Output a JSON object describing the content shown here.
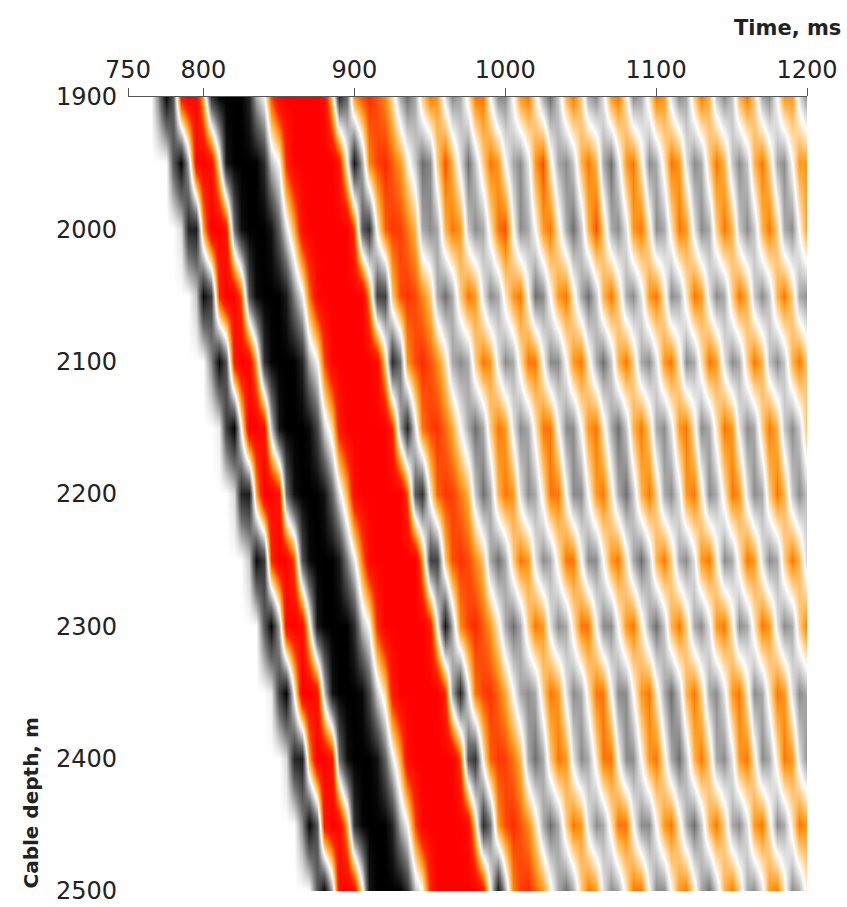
{
  "chart_data": {
    "type": "heatmap",
    "x_label": "Time, ms",
    "y_label": "Cable depth, m",
    "xlim": [
      750,
      1200
    ],
    "xticks": [
      750,
      800,
      900,
      1000,
      1100,
      1200
    ],
    "ylim": [
      1900,
      2500
    ],
    "yticks": [
      1900,
      2000,
      2100,
      2200,
      2300,
      2400,
      2500
    ],
    "x": [
      750,
      755,
      760,
      765,
      770,
      775,
      780,
      785,
      790,
      795,
      800,
      805,
      810,
      815,
      820,
      825,
      830,
      835,
      840,
      845,
      850,
      855,
      860,
      865,
      870,
      875,
      880,
      885,
      890,
      895,
      900,
      905,
      910,
      915,
      920,
      925,
      930,
      935,
      940,
      945,
      950,
      955,
      960,
      965,
      970,
      975,
      980,
      985,
      990,
      995,
      1000,
      1005,
      1010,
      1015,
      1020,
      1025,
      1030,
      1035,
      1040,
      1045,
      1050,
      1055,
      1060,
      1065,
      1070,
      1075,
      1080,
      1085,
      1090,
      1095,
      1100,
      1105,
      1110,
      1115,
      1120,
      1125,
      1130,
      1135,
      1140,
      1145,
      1150,
      1155,
      1160,
      1165,
      1170,
      1175,
      1180,
      1185,
      1190,
      1195,
      1200
    ],
    "y": [
      1900,
      1950,
      2000,
      2050,
      2100,
      2150,
      2200,
      2250,
      2300,
      2350,
      2400,
      2450,
      2500
    ],
    "z": [
      [
        0,
        0,
        0,
        0,
        0.4,
        0.97,
        0.6,
        -0.8,
        -1,
        -0.92,
        -0.33,
        0.77,
        0.98,
        1,
        1,
        1,
        0.84,
        0.3,
        0.03,
        -0.6,
        -0.97,
        -1,
        -1,
        -1,
        -1,
        -1,
        -0.9,
        -0.2,
        0.8,
        0.5,
        -0.4,
        -0.61,
        -0.69,
        -0.59,
        -0.44,
        -0.15,
        0.3,
        0.5,
        0.3,
        -0.2,
        -0.5,
        -0.4,
        0.1,
        0.4,
        0.3,
        -0.1,
        -0.5,
        -0.5,
        0,
        0.4,
        0.4,
        0,
        -0.4,
        -0.5,
        -0.1,
        0.3,
        0.5,
        0.2,
        -0.3,
        -0.5,
        -0.2,
        0.3,
        0.4,
        0.1,
        -0.4,
        -0.5,
        -0.1,
        0.4,
        0.3,
        -0.1,
        -0.5,
        -0.4,
        0.1,
        0.4,
        0.3,
        -0.2,
        -0.5,
        -0.3,
        0.2,
        0.4,
        0.2,
        -0.3,
        -0.5,
        -0.2,
        0.3,
        0.4,
        0,
        -0.4,
        -0.4,
        0.1,
        0.4
      ],
      [
        0,
        0,
        0,
        0,
        0,
        0,
        0.6,
        0.98,
        0.3,
        -0.9,
        -1,
        -0.88,
        -0.1,
        0.9,
        1,
        1,
        1,
        1,
        0.8,
        0.23,
        0,
        -0.7,
        -1,
        -1,
        -1,
        -1,
        -1,
        -1,
        -0.8,
        0,
        0.9,
        0.3,
        -0.45,
        -0.63,
        -0.7,
        -0.56,
        -0.4,
        -0.08,
        0.2,
        0.5,
        0.4,
        -0.2,
        -0.6,
        -0.3,
        0.1,
        0.5,
        0.2,
        -0.2,
        -0.5,
        -0.4,
        0,
        0.3,
        0.4,
        0.1,
        -0.4,
        -0.6,
        -0.1,
        0.3,
        0.4,
        0.2,
        -0.3,
        -0.5,
        -0.3,
        0.3,
        0.5,
        0.1,
        -0.4,
        -0.5,
        -0.1,
        0.4,
        0.3,
        -0.1,
        -0.5,
        -0.4,
        0.1,
        0.4,
        0.3,
        -0.2,
        -0.5,
        -0.3,
        0.2,
        0.4,
        0.2,
        -0.3,
        -0.5,
        -0.2,
        0.3,
        0.4,
        0,
        -0.4,
        -0.4
      ],
      [
        0,
        0,
        0,
        0,
        0,
        0,
        0,
        0.13,
        0.83,
        0.87,
        -0.35,
        -1,
        -1,
        -0.8,
        0.5,
        0.94,
        1,
        1,
        1,
        0.92,
        0.55,
        0.1,
        -0.33,
        -0.9,
        -1,
        -1,
        -1,
        -1,
        -1,
        -1,
        -0.6,
        0.6,
        0.77,
        -0.07,
        -0.55,
        -0.66,
        -0.64,
        -0.5,
        -0.3,
        0.3,
        0.4,
        0.3,
        -0.3,
        -0.5,
        -0.4,
        0.2,
        0.4,
        0.3,
        -0.1,
        -0.5,
        -0.6,
        0,
        0.4,
        0.3,
        0,
        -0.4,
        -0.5,
        -0.1,
        0.3,
        0.5,
        0.2,
        -0.3,
        -0.6,
        -0.2,
        0.3,
        0.4,
        0.1,
        -0.4,
        -0.5,
        -0.1,
        0.4,
        0.3,
        -0.1,
        -0.5,
        -0.4,
        0.1,
        0.4,
        0.3,
        -0.2,
        -0.5,
        -0.3,
        0.2,
        0.4,
        0.2,
        -0.3,
        -0.5,
        -0.2,
        0.3,
        0.4,
        0,
        -0.4
      ],
      [
        0,
        0,
        0,
        0,
        0,
        0,
        0,
        0,
        0,
        0.2,
        0.95,
        0.73,
        -0.7,
        -1,
        -0.96,
        -0.57,
        0.63,
        0.96,
        1,
        1,
        1,
        0.88,
        0.43,
        0.07,
        -0.5,
        -0.93,
        -1,
        -1,
        -1,
        -1,
        -1,
        -1,
        -0.4,
        0.7,
        0.7,
        -0.23,
        -0.6,
        -0.67,
        -0.61,
        -0.46,
        -0.23,
        0.3,
        0.5,
        0.3,
        -0.2,
        -0.5,
        -0.4,
        0.1,
        0.4,
        0.3,
        -0.1,
        -0.4,
        -0.5,
        0,
        0.5,
        0.4,
        0,
        -0.4,
        -0.5,
        -0.1,
        0.3,
        0.5,
        0.2,
        -0.3,
        -0.5,
        -0.2,
        0.3,
        0.4,
        0.1,
        -0.4,
        -0.5,
        -0.1,
        0.4,
        0.3,
        -0.1,
        -0.5,
        -0.4,
        0.1,
        0.4,
        0.3,
        -0.2,
        -0.5,
        -0.3,
        0.2,
        0.4,
        0.2,
        -0.3,
        -0.5,
        -0.2,
        0.3,
        0.4
      ],
      [
        0,
        0,
        0,
        0,
        0,
        0,
        0,
        0,
        0,
        0,
        0,
        0.4,
        0.97,
        0.6,
        -0.8,
        -1,
        -0.92,
        -0.33,
        0.77,
        0.98,
        1,
        1,
        1,
        0.84,
        0.3,
        0.03,
        -0.6,
        -0.97,
        -1,
        -1,
        -1,
        -1,
        -1,
        -0.9,
        -0.2,
        0.8,
        0.5,
        -0.4,
        -0.61,
        -0.69,
        -0.59,
        -0.44,
        -0.15,
        0.3,
        0.4,
        0.3,
        -0.2,
        -0.5,
        -0.4,
        0.1,
        0.4,
        0.3,
        -0.1,
        -0.5,
        -0.5,
        0,
        0.4,
        0.4,
        0,
        -0.4,
        -0.5,
        -0.1,
        0.3,
        0.5,
        0.2,
        -0.3,
        -0.5,
        -0.2,
        0.3,
        0.4,
        0.1,
        -0.4,
        -0.5,
        -0.1,
        0.4,
        0.3,
        -0.1,
        -0.5,
        -0.4,
        0.1,
        0.4,
        0.3,
        -0.2,
        -0.5,
        -0.3,
        0.2,
        0.4,
        0.2,
        -0.3,
        -0.5,
        -0.2
      ],
      [
        0,
        0,
        0,
        0,
        0,
        0,
        0,
        0,
        0,
        0,
        0,
        0,
        0.07,
        0.72,
        1,
        0,
        -1,
        -1,
        -0.84,
        0.2,
        0.92,
        1,
        1,
        1,
        0.96,
        0.68,
        0.17,
        -0.17,
        -0.8,
        -1,
        -1,
        -1,
        -1,
        -1,
        -1,
        -0.7,
        0.3,
        0.83,
        0.1,
        -0.5,
        -0.64,
        -0.67,
        -0.53,
        -0.34,
        0,
        0.3,
        0.5,
        0.3,
        -0.2,
        -0.5,
        -0.4,
        0.1,
        0.4,
        0.3,
        -0.1,
        -0.5,
        -0.5,
        0,
        0.4,
        0.4,
        0,
        -0.4,
        -0.5,
        -0.1,
        0.3,
        0.5,
        0.2,
        -0.3,
        -0.5,
        -0.2,
        0.3,
        0.4,
        0.1,
        -0.4,
        -0.5,
        -0.1,
        0.4,
        0.3,
        -0.1,
        -0.5,
        -0.4,
        0.1,
        0.4,
        0.3,
        -0.2,
        -0.5,
        -0.3,
        0.2,
        0.4,
        0.2,
        -0.3
      ],
      [
        0,
        0,
        0,
        0,
        0,
        0,
        0,
        0,
        0,
        0,
        0,
        0,
        0,
        0,
        0.13,
        0.83,
        0.87,
        -0.35,
        -1,
        -1,
        -0.8,
        0.5,
        0.94,
        1,
        1,
        1,
        0.92,
        0.55,
        0.1,
        -0.33,
        -0.9,
        -1,
        -1,
        -1,
        -1,
        -1,
        -1,
        -0.6,
        0.6,
        0.77,
        -0.07,
        -0.55,
        -0.66,
        -0.64,
        -0.5,
        -0.3,
        0.2,
        0.5,
        0.3,
        -0.3,
        -0.5,
        -0.4,
        0.1,
        0.4,
        0.3,
        -0.1,
        -0.5,
        -0.5,
        0,
        0.4,
        0.4,
        0,
        -0.4,
        -0.5,
        -0.1,
        0.3,
        0.5,
        0.2,
        -0.3,
        -0.5,
        -0.2,
        0.3,
        0.4,
        0.1,
        -0.4,
        -0.5,
        -0.1,
        0.4,
        0.3,
        -0.1,
        -0.5,
        -0.4,
        0.1,
        0.4,
        0.3,
        -0.2,
        -0.5,
        -0.3,
        0.2,
        0.4,
        0.2
      ],
      [
        0,
        0,
        0,
        0,
        0,
        0,
        0,
        0,
        0,
        0,
        0,
        0,
        0,
        0,
        0,
        0,
        0.2,
        0.95,
        0.73,
        -0.7,
        -1,
        -0.96,
        -0.57,
        0.63,
        0.96,
        1,
        1,
        1,
        0.88,
        0.43,
        0.07,
        -0.5,
        -0.93,
        -1,
        -1,
        -1,
        -1,
        -1,
        -1,
        -0.4,
        0.7,
        0.7,
        -0.23,
        -0.6,
        -0.67,
        -0.61,
        -0.46,
        -0.23,
        0.3,
        0.5,
        0.3,
        -0.2,
        -0.5,
        -0.4,
        0.1,
        0.4,
        0.3,
        -0.1,
        -0.5,
        -0.5,
        0,
        0.4,
        0.4,
        0,
        -0.4,
        -0.5,
        -0.1,
        0.3,
        0.5,
        0.2,
        -0.3,
        -0.5,
        -0.2,
        0.3,
        0.4,
        0.1,
        -0.4,
        -0.5,
        -0.1,
        0.4,
        0.3,
        -0.1,
        -0.5,
        -0.4,
        0.1,
        0.4,
        0.3,
        -0.2,
        -0.5,
        -0.3,
        0.2
      ],
      [
        0,
        0,
        0,
        0,
        0,
        0,
        0,
        0,
        0,
        0,
        0,
        0,
        0,
        0,
        0,
        0,
        0,
        0,
        0.6,
        0.98,
        0.3,
        -0.9,
        -1,
        -0.88,
        -0.1,
        0.9,
        1,
        1,
        1,
        1,
        0.8,
        0.23,
        0,
        -0.7,
        -1,
        -1,
        -1,
        -1,
        -1,
        -1,
        -0.8,
        0,
        0.9,
        0.3,
        -0.45,
        -0.63,
        -0.7,
        -0.56,
        -0.4,
        -0.08,
        0.3,
        0.5,
        0.3,
        -0.2,
        -0.5,
        -0.4,
        0.1,
        0.4,
        0.3,
        -0.1,
        -0.5,
        -0.5,
        0,
        0.4,
        0.4,
        0,
        -0.4,
        -0.5,
        -0.1,
        0.3,
        0.5,
        0.2,
        -0.3,
        -0.5,
        -0.2,
        0.3,
        0.4,
        0.1,
        -0.4,
        -0.5,
        -0.1,
        0.4,
        0.3,
        -0.1,
        -0.5,
        -0.4,
        0.1,
        0.4,
        0.3,
        -0.2,
        -0.5
      ],
      [
        0,
        0,
        0,
        0,
        0,
        0,
        0,
        0,
        0,
        0,
        0,
        0,
        0,
        0,
        0,
        0,
        0,
        0,
        0,
        0.07,
        0.72,
        1,
        0,
        -1,
        -1,
        -0.84,
        0.2,
        0.92,
        1,
        1,
        1,
        0.96,
        0.68,
        0.17,
        -0.17,
        -0.8,
        -1,
        -1,
        -1,
        -1,
        -1,
        -1,
        -0.7,
        0.3,
        0.83,
        0.1,
        -0.5,
        -0.64,
        -0.67,
        -0.53,
        -0.34,
        0,
        0.3,
        0.4,
        0.3,
        -0.2,
        -0.5,
        -0.4,
        0.1,
        0.4,
        0.3,
        -0.1,
        -0.5,
        -0.5,
        0,
        0.4,
        0.4,
        0,
        -0.4,
        -0.5,
        -0.1,
        0.3,
        0.5,
        0.2,
        -0.3,
        -0.5,
        -0.2,
        0.3,
        0.4,
        0.1,
        -0.4,
        -0.5,
        -0.1,
        0.4,
        0.3,
        -0.1,
        -0.5,
        -0.4,
        0.1,
        0.4,
        0.3
      ],
      [
        0,
        0,
        0,
        0,
        0,
        0,
        0,
        0,
        0,
        0,
        0,
        0,
        0,
        0,
        0,
        0,
        0,
        0,
        0,
        0,
        0,
        0.13,
        0.83,
        0.87,
        -0.35,
        -1,
        -1,
        -0.8,
        0.5,
        0.94,
        1,
        1,
        1,
        0.92,
        0.55,
        0.1,
        -0.33,
        -0.9,
        -1,
        -1,
        -1,
        -1,
        -1,
        -1,
        -0.6,
        0.6,
        0.77,
        -0.07,
        -0.55,
        -0.66,
        -0.64,
        -0.5,
        -0.3,
        0.3,
        0.5,
        0.3,
        -0.2,
        -0.5,
        -0.4,
        0.1,
        0.4,
        0.3,
        -0.1,
        -0.5,
        -0.5,
        0,
        0.4,
        0.4,
        0,
        -0.4,
        -0.5,
        -0.1,
        0.3,
        0.5,
        0.2,
        -0.3,
        -0.5,
        -0.2,
        0.3,
        0.4,
        0.1,
        -0.4,
        -0.5,
        -0.1,
        0.4,
        0.3,
        -0.1,
        -0.5,
        -0.4,
        0.1,
        0.4
      ],
      [
        0,
        0,
        0,
        0,
        0,
        0,
        0,
        0,
        0,
        0,
        0,
        0,
        0,
        0,
        0,
        0,
        0,
        0,
        0,
        0,
        0,
        0,
        0,
        0.4,
        0.97,
        0.6,
        -0.8,
        -1,
        -0.92,
        -0.33,
        0.77,
        0.98,
        1,
        1,
        1,
        0.84,
        0.3,
        0.03,
        -0.6,
        -0.97,
        -1,
        -1,
        -1,
        -1,
        -1,
        -0.9,
        -0.2,
        0.8,
        0.5,
        -0.4,
        -0.61,
        -0.69,
        -0.59,
        -0.44,
        -0.15,
        0.3,
        0.5,
        0.3,
        -0.2,
        -0.5,
        -0.4,
        0.1,
        0.4,
        0.3,
        -0.1,
        -0.5,
        -0.5,
        0,
        0.4,
        0.4,
        0,
        -0.4,
        -0.5,
        -0.1,
        0.3,
        0.5,
        0.2,
        -0.3,
        -0.5,
        -0.2,
        0.3,
        0.4,
        0.1,
        -0.4,
        -0.5,
        -0.1,
        0.4,
        0.3,
        -0.1,
        -0.5,
        -0.4
      ],
      [
        0,
        0,
        0,
        0,
        0,
        0,
        0,
        0,
        0,
        0,
        0,
        0,
        0,
        0,
        0,
        0,
        0,
        0,
        0,
        0,
        0,
        0,
        0,
        0,
        0,
        0.6,
        0.98,
        0.3,
        -0.9,
        -1,
        -0.88,
        -0.1,
        0.9,
        1,
        1,
        1,
        1,
        0.8,
        0.23,
        0,
        -0.7,
        -1,
        -1,
        -1,
        -1,
        -1,
        -1,
        -0.8,
        0,
        0.9,
        0.3,
        -0.45,
        -0.63,
        -0.7,
        -0.56,
        -0.4,
        -0.08,
        0.3,
        0.5,
        0.3,
        -0.2,
        -0.5,
        -0.4,
        0.1,
        0.4,
        0.3,
        -0.1,
        -0.5,
        -0.5,
        0,
        0.4,
        0.4,
        0,
        -0.4,
        -0.5,
        -0.1,
        0.3,
        0.5,
        0.2,
        -0.3,
        -0.5,
        -0.2,
        0.3,
        0.4,
        0.1,
        -0.4,
        -0.5,
        -0.1,
        0.4,
        0.3,
        -0.1
      ]
    ]
  }
}
